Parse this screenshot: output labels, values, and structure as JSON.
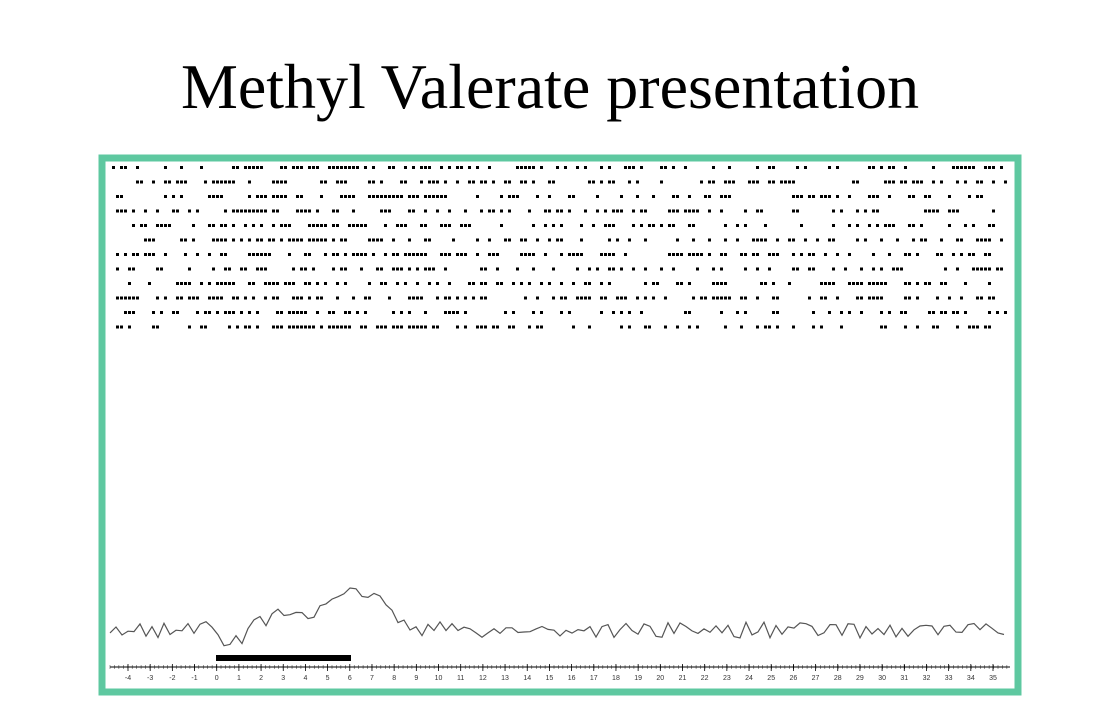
{
  "header": {
    "title": "Methyl Valerate presentation"
  },
  "axis": {
    "ticks": [
      -4,
      -3,
      -2,
      -1,
      0,
      1,
      2,
      3,
      4,
      5,
      6,
      7,
      8,
      9,
      10,
      11,
      12,
      13,
      14,
      15,
      16,
      17,
      18,
      19,
      20,
      21,
      22,
      23,
      24,
      25,
      26,
      27,
      28,
      29,
      30,
      31,
      32,
      33,
      34,
      35
    ]
  }
}
